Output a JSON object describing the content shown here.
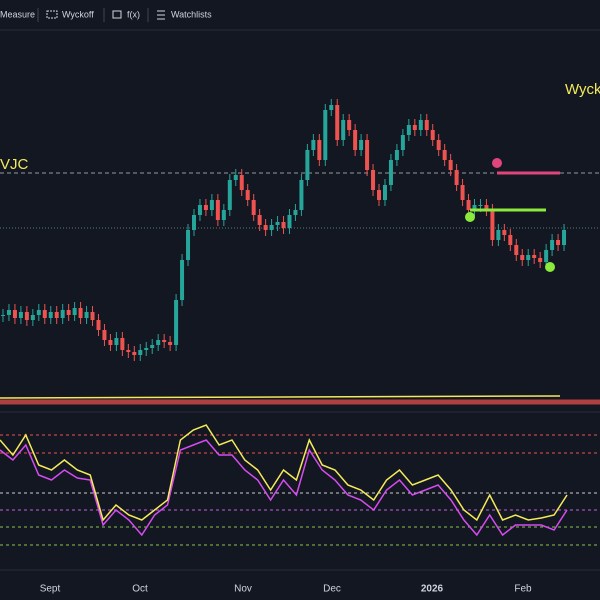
{
  "toolbar": [
    "Measure",
    "Wyckoff",
    "f(x)",
    "Watchlists"
  ],
  "chart_data": {
    "type": "candlestick",
    "labels": [
      "VJC",
      "Wyck"
    ],
    "x_labels": [
      "Sept",
      "Oct",
      "Nov",
      "Dec",
      "2026",
      "Feb"
    ],
    "up_color": "#26a69a",
    "down_color": "#ef5350",
    "ylim": [
      0,
      300
    ],
    "closes": [
      55,
      60,
      52,
      58,
      50,
      55,
      60,
      52,
      58,
      52,
      60,
      55,
      62,
      52,
      58,
      50,
      40,
      30,
      25,
      32,
      20,
      18,
      15,
      20,
      22,
      25,
      30,
      28,
      25,
      70,
      110,
      140,
      155,
      165,
      160,
      170,
      150,
      160,
      190,
      195,
      180,
      170,
      155,
      145,
      140,
      145,
      148,
      142,
      155,
      160,
      190,
      220,
      230,
      210,
      260,
      265,
      230,
      250,
      240,
      220,
      230,
      200,
      180,
      170,
      185,
      210,
      220,
      235,
      245,
      240,
      250,
      240,
      230,
      220,
      210,
      200,
      185,
      170,
      160,
      165,
      165,
      160,
      130,
      140,
      135,
      125,
      115,
      110,
      115,
      112,
      108,
      120,
      130,
      125,
      140
    ],
    "oscillator": {
      "ylim": [
        -5,
        120
      ],
      "series": [
        {
          "color": "#f5ea5a",
          "values": [
            105,
            90,
            110,
            80,
            75,
            85,
            75,
            70,
            25,
            40,
            30,
            25,
            35,
            45,
            105,
            115,
            120,
            100,
            105,
            85,
            75,
            55,
            75,
            65,
            105,
            80,
            75,
            60,
            55,
            45,
            65,
            75,
            60,
            65,
            70,
            55,
            35,
            25,
            50,
            25,
            30,
            25,
            27,
            30,
            50
          ]
        },
        {
          "color": "#d64cf0",
          "values": [
            95,
            85,
            100,
            70,
            65,
            75,
            67,
            65,
            20,
            35,
            25,
            10,
            30,
            40,
            95,
            100,
            105,
            90,
            90,
            75,
            65,
            45,
            65,
            50,
            95,
            75,
            65,
            50,
            45,
            35,
            55,
            65,
            50,
            55,
            60,
            45,
            25,
            10,
            30,
            10,
            20,
            20,
            20,
            15,
            35
          ]
        }
      ],
      "levels": [
        {
          "value": 110,
          "color": "#ef5350"
        },
        {
          "value": 92,
          "color": "#ef5350"
        },
        {
          "value": 52,
          "color": "#cccccc"
        },
        {
          "value": 35,
          "color": "#c060e0"
        },
        {
          "value": 18,
          "color": "#8bc34a"
        },
        {
          "value": 0,
          "color": "#8bc34a"
        }
      ]
    }
  }
}
